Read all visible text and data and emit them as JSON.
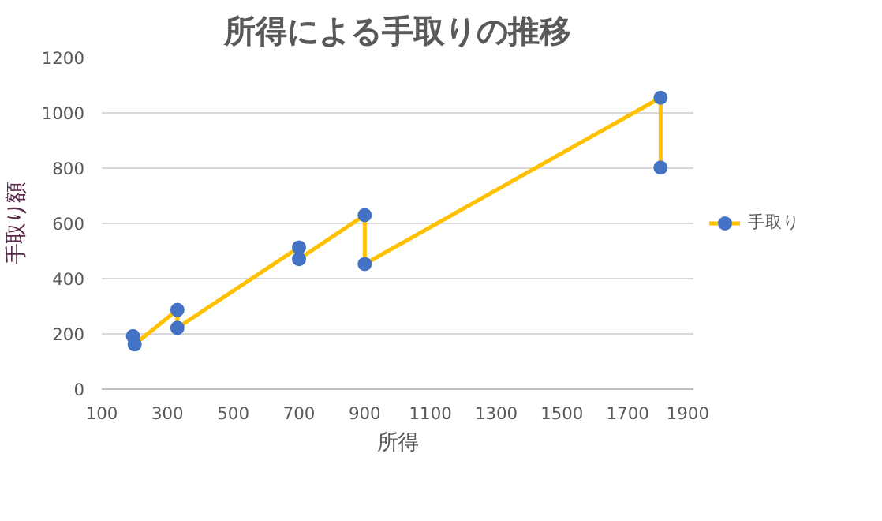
{
  "chart_data": {
    "type": "line",
    "title": "所得による手取りの推移",
    "xlabel": "所得",
    "ylabel": "手取り額",
    "series": [
      {
        "name": "手取り",
        "color": "#ffc000",
        "colors": [
          "#4472c4",
          "#4472c4",
          "#4472c4",
          "#4472c4",
          "#4472c4",
          "#4472c4",
          "#4472c4",
          "#4472c4",
          "#4472c4",
          "#4472c4"
        ],
        "x": [
          195,
          200,
          330,
          330,
          700,
          700,
          900,
          900,
          1800,
          1800
        ],
        "values": [
          192,
          162,
          287,
          222,
          513,
          471,
          630,
          453,
          1055,
          802
        ]
      }
    ],
    "xlim": [
      100,
      1900
    ],
    "xticks": [
      100,
      300,
      500,
      700,
      900,
      1100,
      1300,
      1500,
      1700,
      1900
    ],
    "ylim": [
      0,
      1200
    ],
    "yticks": [
      0,
      200,
      400,
      600,
      800,
      1000,
      1200
    ],
    "grid": "y",
    "legend": "right",
    "marker": "circle",
    "line_style": "solid"
  }
}
